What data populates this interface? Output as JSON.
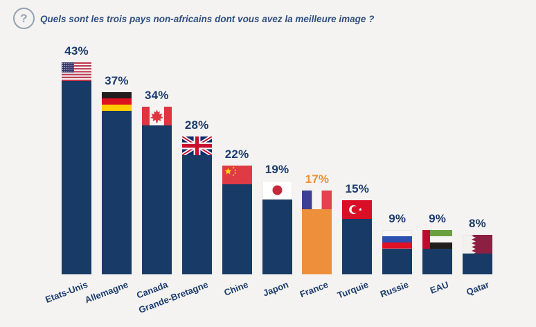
{
  "header": {
    "icon_glyph": "?",
    "question": "Quels sont les trois pays non-africains dont vous avez la meilleure image ?"
  },
  "colors": {
    "background": "#f4f3f1",
    "title_text": "#2f4f7f",
    "question_icon": "#97a1b1"
  },
  "chart_data": {
    "type": "bar",
    "title": "Quels sont les trois pays non-africains dont vous avez la meilleure image ?",
    "categories": [
      "Etats-Unis",
      "Allemagne",
      "Canada",
      "Grande-Bretagne",
      "Chine",
      "Japon",
      "France",
      "Turquie",
      "Russie",
      "EAU",
      "Qatar"
    ],
    "values": [
      43,
      37,
      34,
      28,
      22,
      19,
      17,
      15,
      9,
      9,
      8
    ],
    "value_labels": [
      "43%",
      "37%",
      "34%",
      "28%",
      "22%",
      "19%",
      "17%",
      "15%",
      "9%",
      "9%",
      "8%"
    ],
    "flags": [
      "usa",
      "germany",
      "canada",
      "uk",
      "china",
      "japan",
      "france",
      "turkey",
      "russia",
      "uae",
      "qatar"
    ],
    "highlight_index": 6,
    "highlight_category": "France",
    "bar_color": "#183a66",
    "highlight_bar_color": "#ee8f3c",
    "label_color": "#1b3c6e",
    "highlight_label_color": "#ee8f3c",
    "ylim": [
      0,
      45
    ],
    "grid": false,
    "legend": false,
    "x_tick_rotation": -21,
    "unit": "%"
  }
}
